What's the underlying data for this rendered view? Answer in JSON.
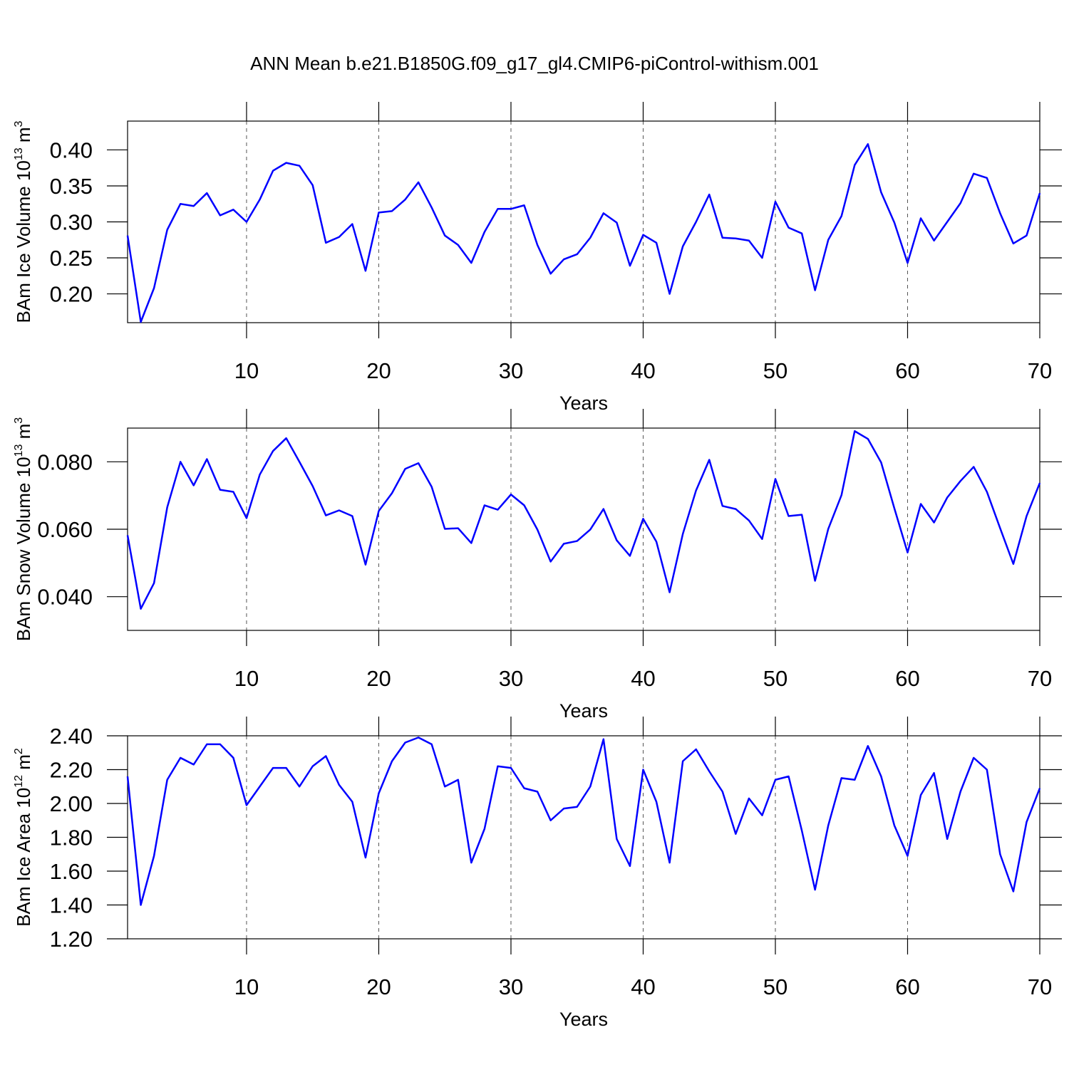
{
  "title": "ANN Mean b.e21.B1850G.f09_g17_gl4.CMIP6-piControl-withism.001",
  "chart_data": [
    {
      "type": "line",
      "ylabel": [
        "BAm Ice Volume 10",
        "13",
        " m",
        "3"
      ],
      "xlabel": "Years",
      "color": "#0000ff",
      "xgrid": true,
      "xlim": [
        1,
        70
      ],
      "xticks": [
        10,
        20,
        30,
        40,
        50,
        60,
        70
      ],
      "ylim": [
        0.16,
        0.44
      ],
      "yticks": [
        {
          "value": 0.2,
          "label": "0.20"
        },
        {
          "value": 0.25,
          "label": "0.25"
        },
        {
          "value": 0.3,
          "label": "0.30"
        },
        {
          "value": 0.35,
          "label": "0.35"
        },
        {
          "value": 0.4,
          "label": "0.40"
        }
      ],
      "x": [
        1,
        2,
        3,
        4,
        5,
        6,
        7,
        8,
        9,
        10,
        11,
        12,
        13,
        14,
        15,
        16,
        17,
        18,
        19,
        20,
        21,
        22,
        23,
        24,
        25,
        26,
        27,
        28,
        29,
        30,
        31,
        32,
        33,
        34,
        35,
        36,
        37,
        38,
        39,
        40,
        41,
        42,
        43,
        44,
        45,
        46,
        47,
        48,
        49,
        50,
        51,
        52,
        53,
        54,
        55,
        56,
        57,
        58,
        59,
        60,
        61,
        62,
        63,
        64,
        65,
        66,
        67,
        68,
        69,
        70
      ],
      "values": [
        0.281,
        0.161,
        0.208,
        0.289,
        0.325,
        0.322,
        0.34,
        0.309,
        0.317,
        0.3,
        0.331,
        0.371,
        0.382,
        0.378,
        0.351,
        0.271,
        0.279,
        0.297,
        0.232,
        0.313,
        0.315,
        0.331,
        0.355,
        0.32,
        0.281,
        0.268,
        0.243,
        0.286,
        0.318,
        0.318,
        0.323,
        0.268,
        0.228,
        0.248,
        0.255,
        0.278,
        0.312,
        0.299,
        0.239,
        0.282,
        0.271,
        0.2,
        0.266,
        0.3,
        0.338,
        0.278,
        0.277,
        0.274,
        0.25,
        0.328,
        0.292,
        0.284,
        0.205,
        0.275,
        0.308,
        0.379,
        0.408,
        0.341,
        0.299,
        0.243,
        0.305,
        0.274,
        0.3,
        0.326,
        0.367,
        0.361,
        0.312,
        0.27,
        0.281,
        0.34
      ]
    },
    {
      "type": "line",
      "ylabel": [
        "BAm Snow Volume 10",
        "13",
        " m",
        "3"
      ],
      "xlabel": "Years",
      "color": "#0000ff",
      "xgrid": true,
      "xlim": [
        1,
        70
      ],
      "xticks": [
        10,
        20,
        30,
        40,
        50,
        60,
        70
      ],
      "ylim": [
        0.03,
        0.09
      ],
      "yticks": [
        {
          "value": 0.04,
          "label": "0.040"
        },
        {
          "value": 0.06,
          "label": "0.060"
        },
        {
          "value": 0.08,
          "label": "0.080"
        }
      ],
      "x": [
        1,
        2,
        3,
        4,
        5,
        6,
        7,
        8,
        9,
        10,
        11,
        12,
        13,
        14,
        15,
        16,
        17,
        18,
        19,
        20,
        21,
        22,
        23,
        24,
        25,
        26,
        27,
        28,
        29,
        30,
        31,
        32,
        33,
        34,
        35,
        36,
        37,
        38,
        39,
        40,
        41,
        42,
        43,
        44,
        45,
        46,
        47,
        48,
        49,
        50,
        51,
        52,
        53,
        54,
        55,
        56,
        57,
        58,
        59,
        60,
        61,
        62,
        63,
        64,
        65,
        66,
        67,
        68,
        69,
        70
      ],
      "values": [
        0.0582,
        0.0364,
        0.044,
        0.0665,
        0.08,
        0.073,
        0.0808,
        0.0717,
        0.0711,
        0.0633,
        0.0762,
        0.0832,
        0.087,
        0.08,
        0.0728,
        0.0641,
        0.0656,
        0.0639,
        0.0495,
        0.0654,
        0.0707,
        0.0779,
        0.0796,
        0.0726,
        0.0601,
        0.0603,
        0.0559,
        0.0671,
        0.0658,
        0.0703,
        0.0671,
        0.0599,
        0.0504,
        0.0557,
        0.0565,
        0.0599,
        0.066,
        0.0567,
        0.0521,
        0.0631,
        0.0563,
        0.0413,
        0.0586,
        0.0715,
        0.0806,
        0.0669,
        0.066,
        0.0626,
        0.0571,
        0.0749,
        0.0639,
        0.0643,
        0.0447,
        0.0601,
        0.0701,
        0.0891,
        0.0868,
        0.0798,
        0.0662,
        0.0531,
        0.0675,
        0.062,
        0.0694,
        0.0743,
        0.0785,
        0.0711,
        0.0603,
        0.0497,
        0.0639,
        0.0737
      ]
    },
    {
      "type": "line",
      "ylabel": [
        "BAm Ice Area 10",
        "12",
        " m",
        "2"
      ],
      "xlabel": "Years",
      "color": "#0000ff",
      "xgrid": true,
      "xlim": [
        1,
        70
      ],
      "xticks": [
        10,
        20,
        30,
        40,
        50,
        60,
        70
      ],
      "ylim": [
        1.2,
        2.4
      ],
      "yticks": [
        {
          "value": 1.2,
          "label": "1.20"
        },
        {
          "value": 1.4,
          "label": "1.40"
        },
        {
          "value": 1.6,
          "label": "1.60"
        },
        {
          "value": 1.8,
          "label": "1.80"
        },
        {
          "value": 2.0,
          "label": "2.00"
        },
        {
          "value": 2.2,
          "label": "2.20"
        },
        {
          "value": 2.4,
          "label": "2.40"
        }
      ],
      "x": [
        1,
        2,
        3,
        4,
        5,
        6,
        7,
        8,
        9,
        10,
        11,
        12,
        13,
        14,
        15,
        16,
        17,
        18,
        19,
        20,
        21,
        22,
        23,
        24,
        25,
        26,
        27,
        28,
        29,
        30,
        31,
        32,
        33,
        34,
        35,
        36,
        37,
        38,
        39,
        40,
        41,
        42,
        43,
        44,
        45,
        46,
        47,
        48,
        49,
        50,
        51,
        52,
        53,
        54,
        55,
        56,
        57,
        58,
        59,
        60,
        61,
        62,
        63,
        64,
        65,
        66,
        67,
        68,
        69,
        70
      ],
      "values": [
        2.16,
        1.4,
        1.69,
        2.14,
        2.27,
        2.23,
        2.35,
        2.35,
        2.27,
        1.99,
        2.1,
        2.21,
        2.21,
        2.1,
        2.22,
        2.28,
        2.11,
        2.01,
        1.68,
        2.06,
        2.25,
        2.36,
        2.39,
        2.35,
        2.1,
        2.14,
        1.65,
        1.85,
        2.22,
        2.21,
        2.09,
        2.07,
        1.9,
        1.97,
        1.98,
        2.1,
        2.38,
        1.79,
        1.63,
        2.2,
        2.01,
        1.65,
        2.25,
        2.32,
        2.19,
        2.07,
        1.82,
        2.03,
        1.93,
        2.14,
        2.16,
        1.84,
        1.49,
        1.87,
        2.15,
        2.14,
        2.34,
        2.16,
        1.87,
        1.69,
        2.05,
        2.18,
        1.79,
        2.07,
        2.27,
        2.2,
        1.7,
        1.48,
        1.89,
        2.09
      ]
    }
  ]
}
